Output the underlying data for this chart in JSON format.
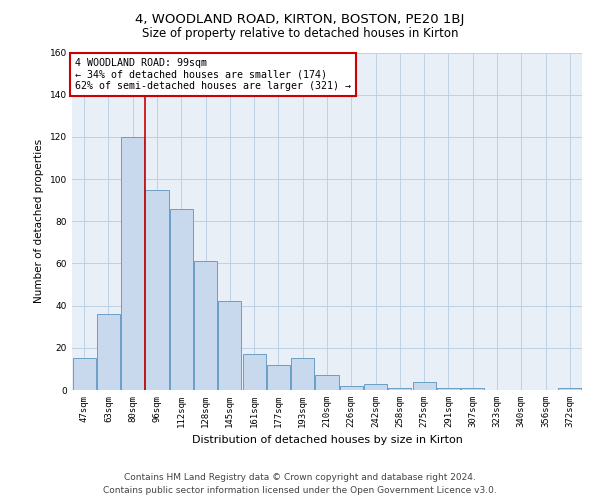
{
  "title": "4, WOODLAND ROAD, KIRTON, BOSTON, PE20 1BJ",
  "subtitle": "Size of property relative to detached houses in Kirton",
  "xlabel": "Distribution of detached houses by size in Kirton",
  "ylabel": "Number of detached properties",
  "categories": [
    "47sqm",
    "63sqm",
    "80sqm",
    "96sqm",
    "112sqm",
    "128sqm",
    "145sqm",
    "161sqm",
    "177sqm",
    "193sqm",
    "210sqm",
    "226sqm",
    "242sqm",
    "258sqm",
    "275sqm",
    "291sqm",
    "307sqm",
    "323sqm",
    "340sqm",
    "356sqm",
    "372sqm"
  ],
  "values": [
    15,
    36,
    120,
    95,
    86,
    61,
    42,
    17,
    12,
    15,
    7,
    2,
    3,
    1,
    4,
    1,
    1,
    0,
    0,
    0,
    1
  ],
  "bar_color": "#c8d9ee",
  "bar_edge_color": "#6a9ec5",
  "bar_linewidth": 0.7,
  "vline_color": "#cc0000",
  "vline_pos": 2.525,
  "annotation_line1": "4 WOODLAND ROAD: 99sqm",
  "annotation_line2": "← 34% of detached houses are smaller (174)",
  "annotation_line3": "62% of semi-detached houses are larger (321) →",
  "annotation_box_color": "#cc0000",
  "ylim": [
    0,
    160
  ],
  "yticks": [
    0,
    20,
    40,
    60,
    80,
    100,
    120,
    140,
    160
  ],
  "grid_color": "#b8cde0",
  "bg_color": "#e8eff7",
  "footer_line1": "Contains HM Land Registry data © Crown copyright and database right 2024.",
  "footer_line2": "Contains public sector information licensed under the Open Government Licence v3.0.",
  "title_fontsize": 9.5,
  "subtitle_fontsize": 8.5,
  "annotation_fontsize": 7.2,
  "footer_fontsize": 6.5,
  "ylabel_fontsize": 7.5,
  "xlabel_fontsize": 8,
  "tick_fontsize": 6.5
}
